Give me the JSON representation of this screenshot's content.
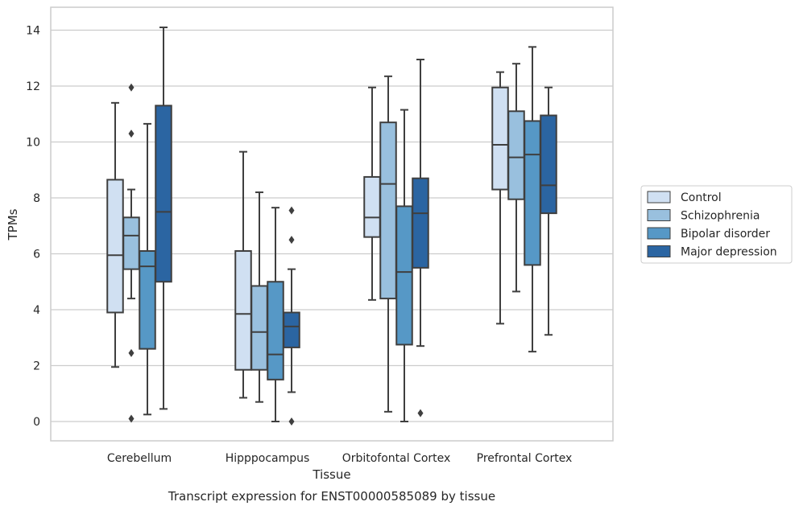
{
  "caption": "Transcript expression for ENST00000585089 by tissue",
  "chart_data": {
    "type": "box",
    "title": "",
    "xlabel": "Tissue",
    "ylabel": "TPMs",
    "ylim": [
      -0.7,
      14.8
    ],
    "yticks": [
      0,
      2,
      4,
      6,
      8,
      10,
      12,
      14
    ],
    "grid": "horizontal",
    "legend_position": "right",
    "categories": [
      "Cerebellum",
      "Hipppocampus",
      "Orbitofontal Cortex",
      "Prefrontal Cortex"
    ],
    "series": [
      {
        "name": "Control",
        "color": "#d0e0f2",
        "boxes": [
          {
            "whisker_low": 1.95,
            "q1": 3.9,
            "median": 5.95,
            "q3": 8.65,
            "whisker_high": 11.4,
            "outliers": []
          },
          {
            "whisker_low": 0.85,
            "q1": 1.85,
            "median": 3.85,
            "q3": 6.1,
            "whisker_high": 9.65,
            "outliers": []
          },
          {
            "whisker_low": 4.35,
            "q1": 6.6,
            "median": 7.3,
            "q3": 8.75,
            "whisker_high": 11.95,
            "outliers": []
          },
          {
            "whisker_low": 3.5,
            "q1": 8.3,
            "median": 9.9,
            "q3": 11.95,
            "whisker_high": 12.5,
            "outliers": []
          }
        ]
      },
      {
        "name": "Schizophrenia",
        "color": "#99c0de",
        "boxes": [
          {
            "whisker_low": 4.4,
            "q1": 5.45,
            "median": 6.65,
            "q3": 7.3,
            "whisker_high": 8.3,
            "outliers": [
              11.95,
              10.3,
              2.45,
              0.1
            ]
          },
          {
            "whisker_low": 0.7,
            "q1": 1.85,
            "median": 3.2,
            "q3": 4.85,
            "whisker_high": 8.2,
            "outliers": []
          },
          {
            "whisker_low": 0.35,
            "q1": 4.4,
            "median": 8.5,
            "q3": 10.7,
            "whisker_high": 12.35,
            "outliers": []
          },
          {
            "whisker_low": 4.65,
            "q1": 7.95,
            "median": 9.45,
            "q3": 11.1,
            "whisker_high": 12.8,
            "outliers": []
          }
        ]
      },
      {
        "name": "Bipolar disorder",
        "color": "#5698c6",
        "boxes": [
          {
            "whisker_low": 0.25,
            "q1": 2.6,
            "median": 5.55,
            "q3": 6.1,
            "whisker_high": 10.65,
            "outliers": []
          },
          {
            "whisker_low": 0.0,
            "q1": 1.5,
            "median": 2.4,
            "q3": 5.0,
            "whisker_high": 7.65,
            "outliers": []
          },
          {
            "whisker_low": 0.0,
            "q1": 2.75,
            "median": 5.35,
            "q3": 7.7,
            "whisker_high": 11.15,
            "outliers": []
          },
          {
            "whisker_low": 2.5,
            "q1": 5.6,
            "median": 9.55,
            "q3": 10.75,
            "whisker_high": 13.4,
            "outliers": []
          }
        ]
      },
      {
        "name": "Major depression",
        "color": "#2b65a2",
        "boxes": [
          {
            "whisker_low": 0.45,
            "q1": 5.0,
            "median": 7.5,
            "q3": 11.3,
            "whisker_high": 14.1,
            "outliers": []
          },
          {
            "whisker_low": 1.05,
            "q1": 2.65,
            "median": 3.4,
            "q3": 3.9,
            "whisker_high": 5.45,
            "outliers": [
              7.55,
              6.5,
              0.0
            ]
          },
          {
            "whisker_low": 2.7,
            "q1": 5.5,
            "median": 7.45,
            "q3": 8.7,
            "whisker_high": 12.95,
            "outliers": [
              0.3
            ]
          },
          {
            "whisker_low": 3.1,
            "q1": 7.45,
            "median": 8.45,
            "q3": 10.95,
            "whisker_high": 11.95,
            "outliers": []
          }
        ]
      }
    ]
  }
}
